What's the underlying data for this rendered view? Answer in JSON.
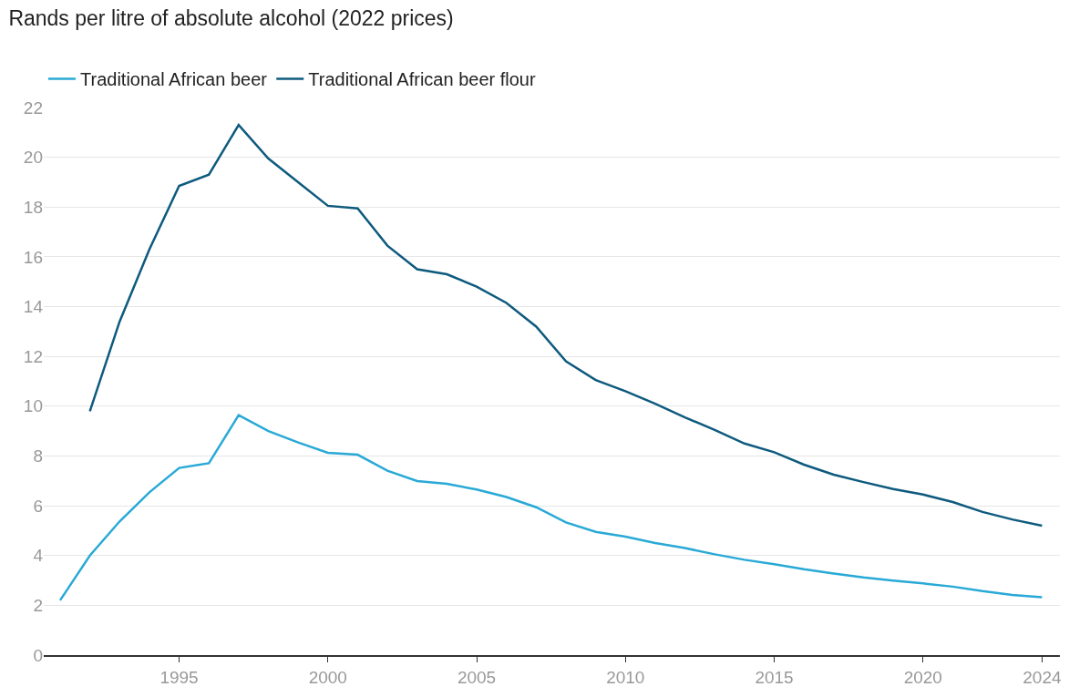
{
  "chart_data": {
    "type": "line",
    "title": "Rands per litre of absolute alcohol (2022 prices)",
    "x": [
      1991,
      1992,
      1993,
      1994,
      1995,
      1996,
      1997,
      1998,
      1999,
      2000,
      2001,
      2002,
      2003,
      2004,
      2005,
      2006,
      2007,
      2008,
      2009,
      2010,
      2011,
      2012,
      2013,
      2014,
      2015,
      2016,
      2017,
      2018,
      2019,
      2020,
      2021,
      2022,
      2023,
      2024
    ],
    "series": [
      {
        "name": "Traditional African beer",
        "color": "#29a9d6",
        "values": [
          2.2,
          4.0,
          5.37,
          6.54,
          7.52,
          7.71,
          9.64,
          9.0,
          8.54,
          8.13,
          8.05,
          7.41,
          6.99,
          6.88,
          6.65,
          6.35,
          5.94,
          5.33,
          4.95,
          4.76,
          4.5,
          4.3,
          4.05,
          3.83,
          3.65,
          3.45,
          3.28,
          3.12,
          2.99,
          2.88,
          2.75,
          2.57,
          2.42,
          2.32
        ]
      },
      {
        "name": "Traditional African beer flour",
        "color": "#0e5a7e",
        "values": [
          null,
          9.8,
          13.4,
          16.3,
          18.85,
          19.3,
          21.3,
          19.95,
          19.0,
          18.05,
          17.95,
          16.45,
          15.5,
          15.3,
          14.8,
          14.15,
          13.2,
          11.8,
          11.05,
          10.6,
          10.1,
          9.55,
          9.05,
          8.5,
          8.15,
          7.65,
          7.25,
          6.95,
          6.67,
          6.45,
          6.15,
          5.75,
          5.45,
          5.2
        ]
      }
    ],
    "xlim": [
      1990.45,
      2024.6
    ],
    "xticks": [
      1995,
      2000,
      2005,
      2010,
      2015,
      2020,
      2024
    ],
    "ylim": [
      0,
      22
    ],
    "yticks": [
      0,
      2,
      4,
      6,
      8,
      10,
      12,
      14,
      16,
      18,
      20,
      22
    ],
    "grid": "y",
    "legend": "top left",
    "marker": "none",
    "line_style": "solid"
  }
}
